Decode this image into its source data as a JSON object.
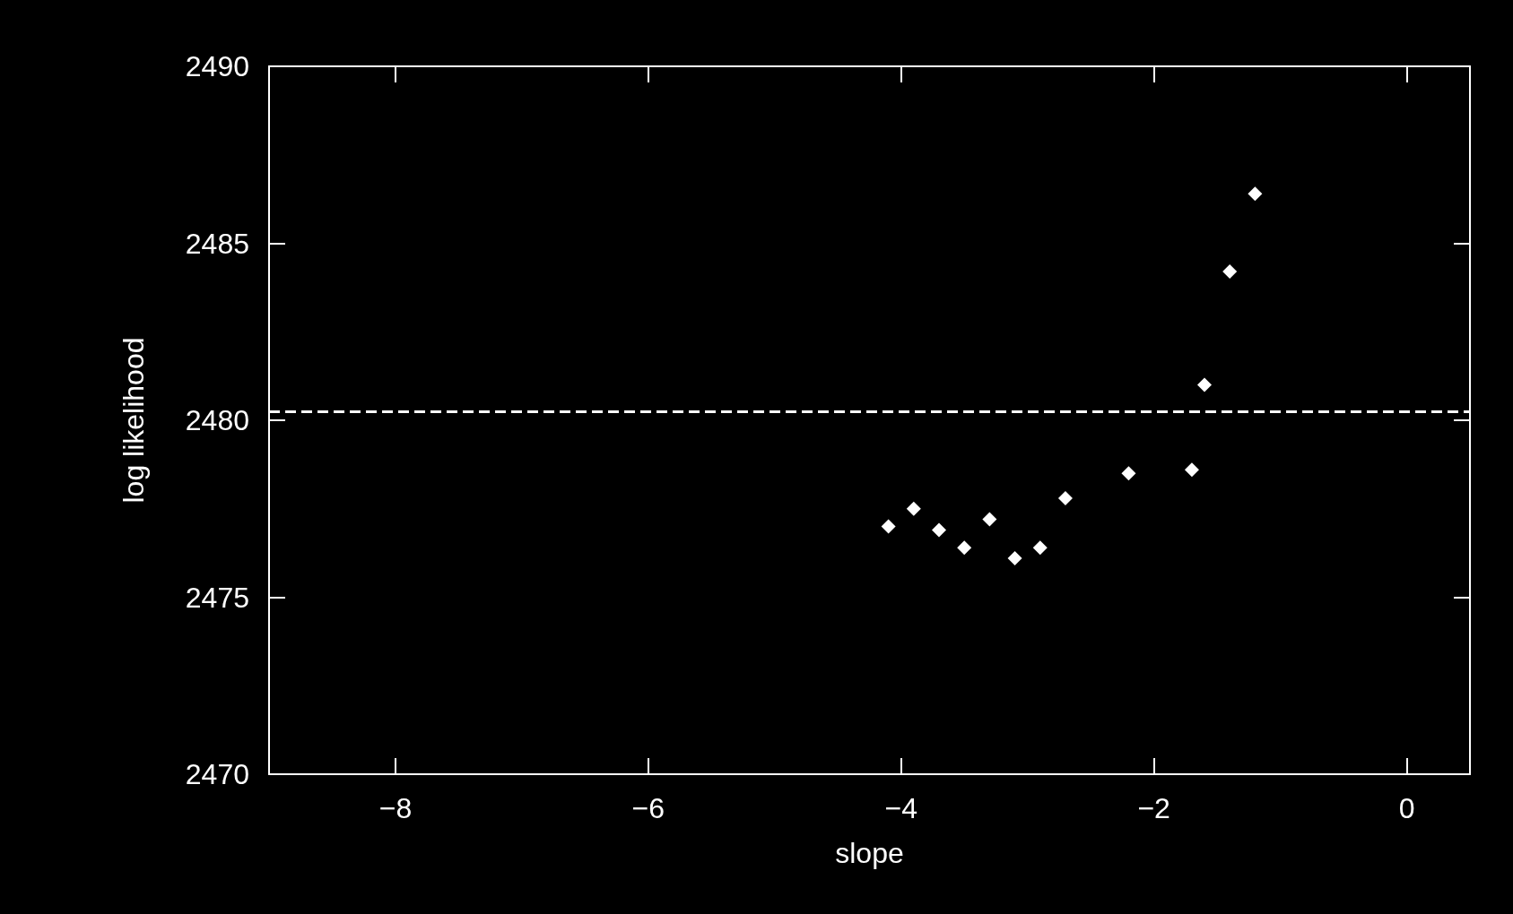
{
  "chart_data": {
    "type": "scatter",
    "xlabel": "slope",
    "ylabel": "log likelihood",
    "x": [
      -4.1,
      -3.9,
      -3.7,
      -3.5,
      -3.3,
      -3.1,
      -2.9,
      -2.7,
      -2.2,
      -1.7,
      -1.6,
      -1.4,
      -1.2
    ],
    "series": [
      {
        "color": "#ffffff",
        "values": [
          2477.0,
          2477.5,
          2476.9,
          2476.4,
          2477.2,
          2476.1,
          2476.4,
          2477.8,
          2478.5,
          2478.6,
          2481.0,
          2484.2,
          2486.4
        ]
      }
    ],
    "xlim": [
      -9,
      0.5
    ],
    "xticks": [
      -8,
      -6,
      -4,
      -2,
      0
    ],
    "ylim": [
      2470,
      2490
    ],
    "yticks": [
      2470,
      2475,
      2480,
      2485,
      2490
    ],
    "ref_lines": [
      {
        "axis": "y",
        "value": 2480.25,
        "color": "#ffffff",
        "line_style": "dashed"
      }
    ],
    "marker": "diamond"
  }
}
